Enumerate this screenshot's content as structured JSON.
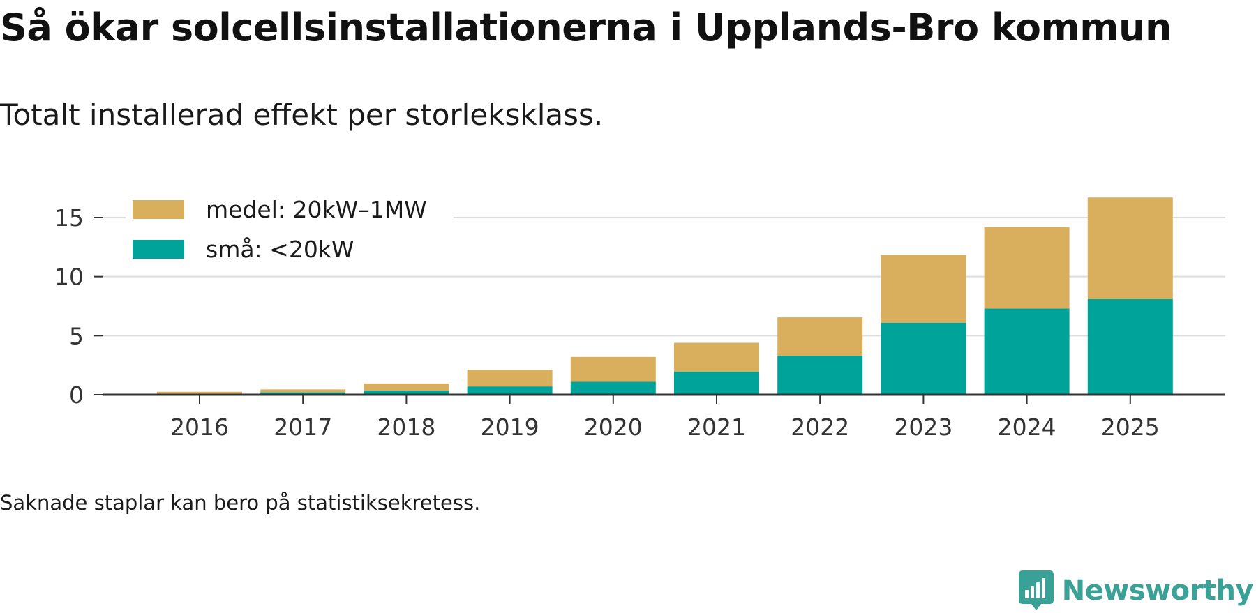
{
  "header": {
    "title": "Så ökar solcellsinstallationerna i Upplands-Bro kommun",
    "subtitle": "Totalt installerad effekt per storleksklass."
  },
  "footer": {
    "note": "Saknade staplar kan bero på statistiksekretess.",
    "brand": "Newsworthy",
    "brand_icon": "newsworthy-logo-icon"
  },
  "colors": {
    "medel": "#d9ae5c",
    "sma": "#00a39a",
    "grid": "#dddddd",
    "axis": "#333333",
    "brand": "#3aa196"
  },
  "chart_data": {
    "type": "bar",
    "stacked": true,
    "title": "Så ökar solcellsinstallationerna i Upplands-Bro kommun",
    "subtitle": "Totalt installerad effekt per storleksklass.",
    "xlabel": "",
    "ylabel": "",
    "categories": [
      "2016",
      "2017",
      "2018",
      "2019",
      "2020",
      "2021",
      "2022",
      "2023",
      "2024",
      "2025"
    ],
    "series": [
      {
        "name": "små: <20kW",
        "key": "sma",
        "values": [
          0.1,
          0.2,
          0.35,
          0.7,
          1.1,
          1.95,
          3.3,
          6.1,
          7.3,
          8.1
        ]
      },
      {
        "name": "medel: 20kW–1MW",
        "key": "medel",
        "values": [
          0.15,
          0.25,
          0.6,
          1.4,
          2.1,
          2.45,
          3.25,
          5.75,
          6.9,
          8.6
        ]
      }
    ],
    "yticks": [
      0,
      5,
      10,
      15
    ],
    "ytick_labels": [
      "0",
      "5",
      "10",
      "15"
    ],
    "ylim": [
      0,
      17.5
    ],
    "grid": true,
    "legend": {
      "position": "top-left",
      "entries": [
        "medel: 20kW–1MW",
        "små: <20kW"
      ]
    }
  }
}
